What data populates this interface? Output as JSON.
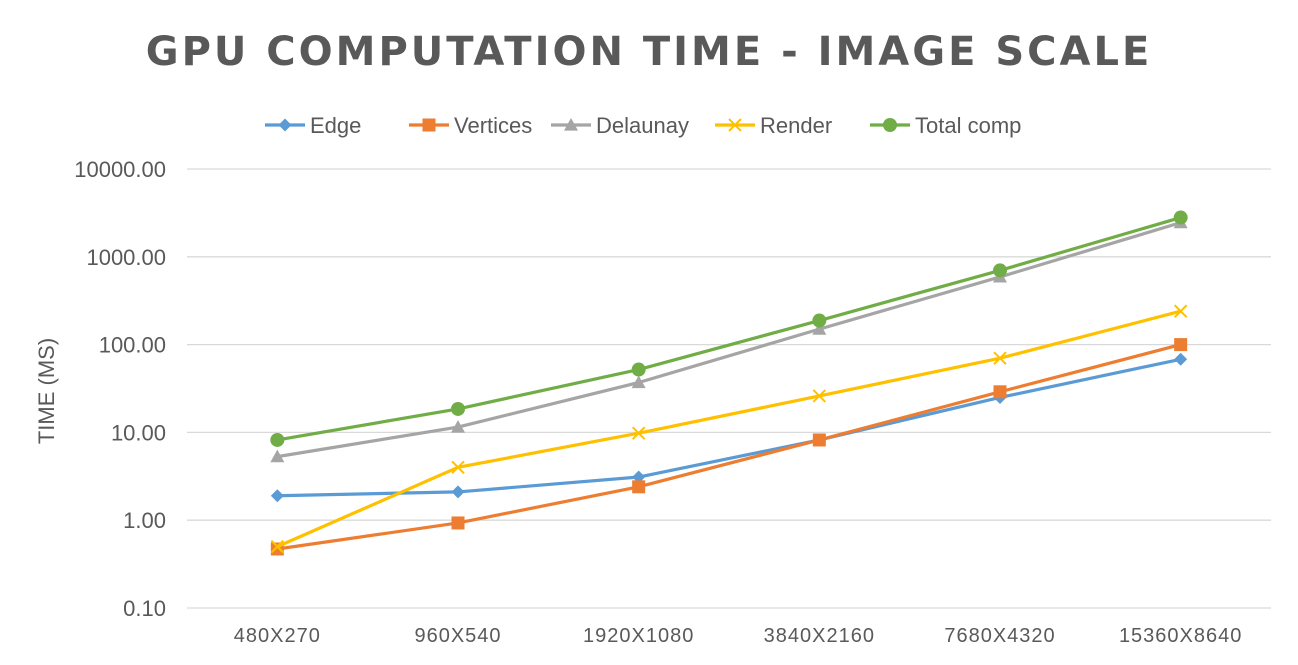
{
  "chart_data": {
    "type": "line",
    "title": "GPU  COMPUTATION TIME - IMAGE SCALE",
    "xlabel": "",
    "ylabel": "TIME (MS)",
    "yscale": "log",
    "ylim": [
      0.1,
      10000
    ],
    "yticks": [
      "0.10",
      "1.00",
      "10.00",
      "100.00",
      "1000.00",
      "10000.00"
    ],
    "categories": [
      "480X270",
      "960X540",
      "1920X1080",
      "3840X2160",
      "7680X4320",
      "15360X8640"
    ],
    "grid": true,
    "legend_position": "top",
    "series": [
      {
        "name": "Edge",
        "color": "#5B9BD5",
        "marker": "diamond",
        "values": [
          1.9,
          2.1,
          3.1,
          8.2,
          25,
          68
        ]
      },
      {
        "name": "Vertices",
        "color": "#ED7D31",
        "marker": "square",
        "values": [
          0.47,
          0.93,
          2.4,
          8.2,
          29,
          100
        ]
      },
      {
        "name": "Delaunay",
        "color": "#A5A5A5",
        "marker": "triangle",
        "values": [
          5.3,
          11.5,
          37,
          150,
          590,
          2450
        ]
      },
      {
        "name": "Render",
        "color": "#FFC000",
        "marker": "x",
        "values": [
          0.5,
          4.0,
          9.8,
          26,
          70,
          240
        ]
      },
      {
        "name": "Total comp",
        "color": "#70AD47",
        "marker": "circle",
        "values": [
          8.2,
          18.5,
          52,
          188,
          700,
          2800
        ]
      }
    ]
  }
}
